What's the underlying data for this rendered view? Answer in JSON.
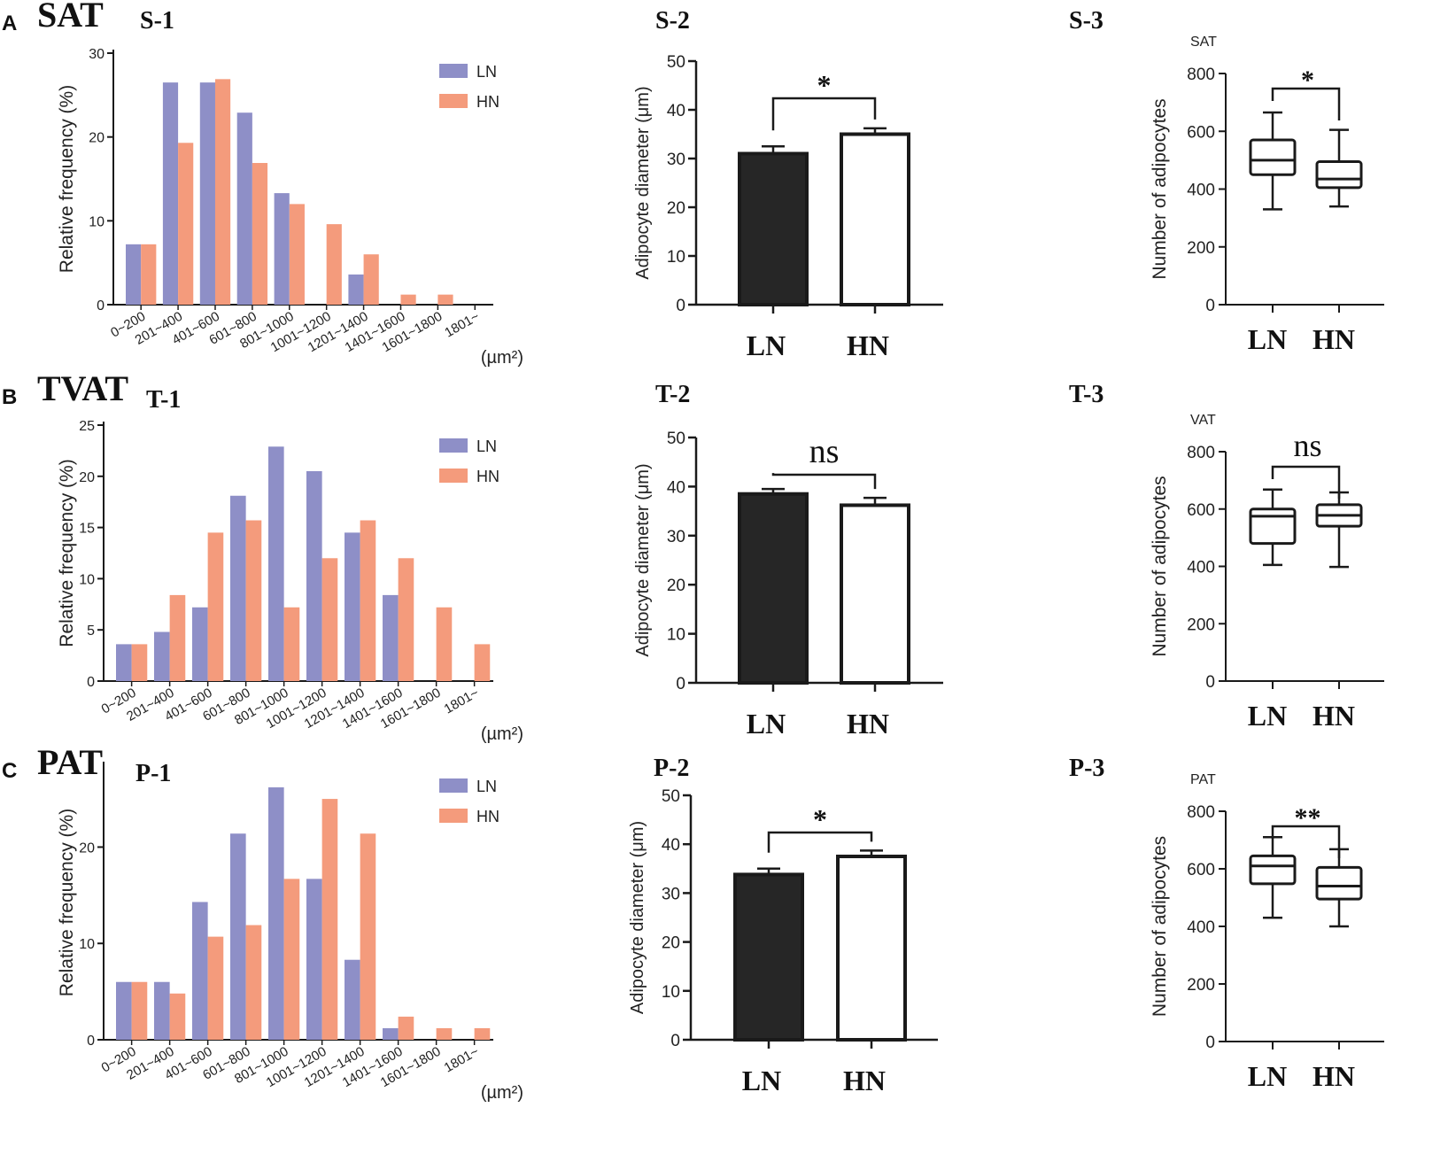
{
  "colors": {
    "ln": "#8e8fc7",
    "hn": "#f49b7c",
    "axis": "#1a1a1a",
    "bar_ln": "#262626",
    "bar_hn": "#ffffff"
  },
  "panels": [
    {
      "letter": "A",
      "title": "SAT",
      "hist_label": "S-1",
      "diam_label": "S-2",
      "count_label": "S-3",
      "box_tag": "SAT"
    },
    {
      "letter": "B",
      "title": "TVAT",
      "hist_label": "T-1",
      "diam_label": "T-2",
      "count_label": "T-3",
      "box_tag": "VAT"
    },
    {
      "letter": "C",
      "title": "PAT",
      "hist_label": "P-1",
      "diam_label": "P-2",
      "count_label": "P-3",
      "box_tag": "PAT"
    }
  ],
  "chart_data": [
    {
      "id": "S-1",
      "type": "bar",
      "title": "S-1",
      "xlabel": "(µm²)",
      "ylabel": "Relative frequency (%)",
      "ylim": [
        0,
        30
      ],
      "yticks": [
        0,
        10,
        20,
        30
      ],
      "categories": [
        "0~200",
        "201~400",
        "401~600",
        "601~800",
        "801~1000",
        "1001~1200",
        "1201~1400",
        "1401~1600",
        "1601~1800",
        "1801~"
      ],
      "series": [
        {
          "name": "LN",
          "values": [
            7.2,
            26.5,
            26.5,
            22.9,
            13.3,
            0,
            3.6,
            0,
            0,
            0
          ]
        },
        {
          "name": "HN",
          "values": [
            7.2,
            19.3,
            26.9,
            16.9,
            12.0,
            9.6,
            6.0,
            1.2,
            1.2,
            0
          ]
        }
      ],
      "legend": "top-right"
    },
    {
      "id": "S-2",
      "type": "bar",
      "title": "S-2",
      "ylabel": "Adipocyte diameter  (μm)",
      "ylim": [
        0,
        50
      ],
      "yticks": [
        0,
        10,
        20,
        30,
        40,
        50
      ],
      "categories": [
        "LN",
        "HN"
      ],
      "values": [
        31.0,
        35.0
      ],
      "errors": [
        1.5,
        1.2
      ],
      "significance": "*"
    },
    {
      "id": "S-3",
      "type": "box",
      "title": "S-3",
      "subtitle": "SAT",
      "ylabel": "Number of adipocytes",
      "ylim": [
        0,
        800
      ],
      "yticks": [
        0,
        200,
        400,
        600,
        800
      ],
      "categories": [
        "LN",
        "HN"
      ],
      "boxes": [
        {
          "name": "LN",
          "min": 330,
          "q1": 450,
          "median": 500,
          "q3": 570,
          "max": 665
        },
        {
          "name": "HN",
          "min": 340,
          "q1": 405,
          "median": 435,
          "q3": 495,
          "max": 605
        }
      ],
      "significance": "*"
    },
    {
      "id": "T-1",
      "type": "bar",
      "title": "T-1",
      "xlabel": "(µm²)",
      "ylabel": "Relative frequency (%)",
      "ylim": [
        0,
        25
      ],
      "yticks": [
        0,
        5,
        10,
        15,
        20,
        25
      ],
      "categories": [
        "0~200",
        "201~400",
        "401~600",
        "601~800",
        "801~1000",
        "1001~1200",
        "1201~1400",
        "1401~1600",
        "1601~1800",
        "1801~"
      ],
      "series": [
        {
          "name": "LN",
          "values": [
            3.6,
            4.8,
            7.2,
            18.1,
            22.9,
            20.5,
            14.5,
            8.4,
            0,
            0
          ]
        },
        {
          "name": "HN",
          "values": [
            3.6,
            8.4,
            14.5,
            15.7,
            7.2,
            12.0,
            15.7,
            12.0,
            7.2,
            3.6
          ]
        }
      ],
      "legend": "top-right"
    },
    {
      "id": "T-2",
      "type": "bar",
      "title": "T-2",
      "ylabel": "Adipocyte diameter  (μm)",
      "ylim": [
        0,
        50
      ],
      "yticks": [
        0,
        10,
        20,
        30,
        40,
        50
      ],
      "categories": [
        "LN",
        "HN"
      ],
      "values": [
        38.5,
        36.2
      ],
      "errors": [
        1.0,
        1.5
      ],
      "significance": "ns"
    },
    {
      "id": "T-3",
      "type": "box",
      "title": "T-3",
      "subtitle": "VAT",
      "ylabel": "Number of adipocytes",
      "ylim": [
        0,
        800
      ],
      "yticks": [
        0,
        200,
        400,
        600,
        800
      ],
      "categories": [
        "LN",
        "HN"
      ],
      "boxes": [
        {
          "name": "LN",
          "min": 405,
          "q1": 480,
          "median": 575,
          "q3": 600,
          "max": 668
        },
        {
          "name": "HN",
          "min": 398,
          "q1": 540,
          "median": 578,
          "q3": 615,
          "max": 658
        }
      ],
      "significance": "ns"
    },
    {
      "id": "P-1",
      "type": "bar",
      "title": "P-1",
      "xlabel": "(µm²)",
      "ylabel": "Relative frequency (%)",
      "ylim": [
        0,
        30
      ],
      "yticks": [
        0,
        10,
        20
      ],
      "categories": [
        "0~200",
        "201~400",
        "401~600",
        "601~800",
        "801~1000",
        "1001~1200",
        "1201~1400",
        "1401~1600",
        "1601~1800",
        "1801~"
      ],
      "series": [
        {
          "name": "LN",
          "values": [
            6.0,
            6.0,
            14.3,
            21.4,
            26.2,
            16.7,
            8.3,
            1.2,
            0,
            0
          ]
        },
        {
          "name": "HN",
          "values": [
            6.0,
            4.8,
            10.7,
            11.9,
            16.7,
            25.0,
            21.4,
            2.4,
            1.2,
            1.2
          ]
        }
      ],
      "legend": "top-right"
    },
    {
      "id": "P-2",
      "type": "bar",
      "title": "P-2",
      "ylabel": "Adipocyte diameter  (μm)",
      "ylim": [
        0,
        50
      ],
      "yticks": [
        0,
        10,
        20,
        30,
        40,
        50
      ],
      "categories": [
        "LN",
        "HN"
      ],
      "values": [
        33.8,
        37.5
      ],
      "errors": [
        1.2,
        1.2
      ],
      "significance": "*"
    },
    {
      "id": "P-3",
      "type": "box",
      "title": "P-3",
      "subtitle": "PAT",
      "ylabel": "Number of adipocytes",
      "ylim": [
        0,
        800
      ],
      "yticks": [
        0,
        200,
        400,
        600,
        800
      ],
      "categories": [
        "LN",
        "HN"
      ],
      "boxes": [
        {
          "name": "LN",
          "min": 430,
          "q1": 548,
          "median": 610,
          "q3": 645,
          "max": 710
        },
        {
          "name": "HN",
          "min": 400,
          "q1": 495,
          "median": 540,
          "q3": 605,
          "max": 668
        }
      ],
      "significance": "**"
    }
  ]
}
